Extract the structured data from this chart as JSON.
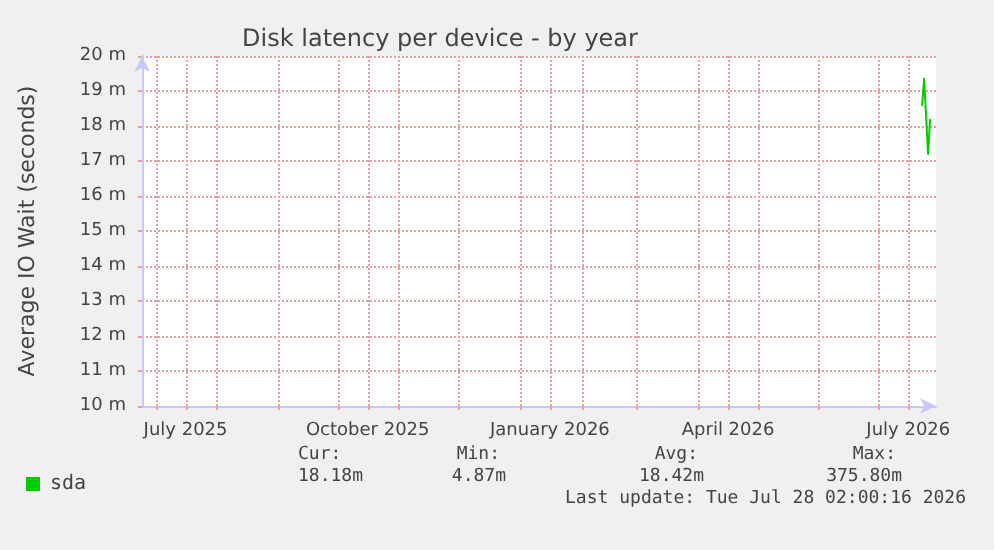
{
  "chart_data": {
    "type": "line",
    "title": "Disk latency per device - by year",
    "ylabel": "Average IO Wait (seconds)",
    "x": [
      "2026-07-23",
      "2026-07-24",
      "2026-07-26",
      "2026-07-27"
    ],
    "series": [
      {
        "name": "sda",
        "color": "#00cc00",
        "values": [
          18.6,
          19.35,
          17.2,
          18.18
        ]
      }
    ],
    "xlim": [
      "2025-06-24",
      "2026-07-30"
    ],
    "xticks": [
      {
        "value": "2025-07-01",
        "label": null
      },
      {
        "value": "2025-07-16",
        "label": "July 2025"
      },
      {
        "value": "2025-08-01",
        "label": null
      },
      {
        "value": "2025-09-01",
        "label": null
      },
      {
        "value": "2025-10-01",
        "label": null
      },
      {
        "value": "2025-10-16",
        "label": "October 2025"
      },
      {
        "value": "2025-11-01",
        "label": null
      },
      {
        "value": "2025-12-01",
        "label": null
      },
      {
        "value": "2026-01-01",
        "label": null
      },
      {
        "value": "2026-01-16",
        "label": "January 2026"
      },
      {
        "value": "2026-02-01",
        "label": null
      },
      {
        "value": "2026-03-01",
        "label": null
      },
      {
        "value": "2026-04-01",
        "label": null
      },
      {
        "value": "2026-04-16",
        "label": "April 2026"
      },
      {
        "value": "2026-05-01",
        "label": null
      },
      {
        "value": "2026-06-01",
        "label": null
      },
      {
        "value": "2026-07-01",
        "label": null
      },
      {
        "value": "2026-07-16",
        "label": "July 2026"
      }
    ],
    "ylim": [
      10,
      20
    ],
    "yticks": [
      {
        "value": 10,
        "label": "10 m"
      },
      {
        "value": 11,
        "label": "11 m"
      },
      {
        "value": 12,
        "label": "12 m"
      },
      {
        "value": 13,
        "label": "13 m"
      },
      {
        "value": 14,
        "label": "14 m"
      },
      {
        "value": 15,
        "label": "15 m"
      },
      {
        "value": 16,
        "label": "16 m"
      },
      {
        "value": 17,
        "label": "17 m"
      },
      {
        "value": 18,
        "label": "18 m"
      },
      {
        "value": 19,
        "label": "19 m"
      },
      {
        "value": 20,
        "label": "20 m"
      }
    ],
    "grid": true,
    "legend": "bottom left",
    "marker": "none",
    "line_style": "solid",
    "annotations": [
      "Cur:",
      "Min:",
      "Avg:",
      "Max:",
      "18.18m",
      "4.87m",
      "18.42m",
      "375.80m",
      "Last update: Tue Jul 28 02:00:16 2026"
    ]
  }
}
